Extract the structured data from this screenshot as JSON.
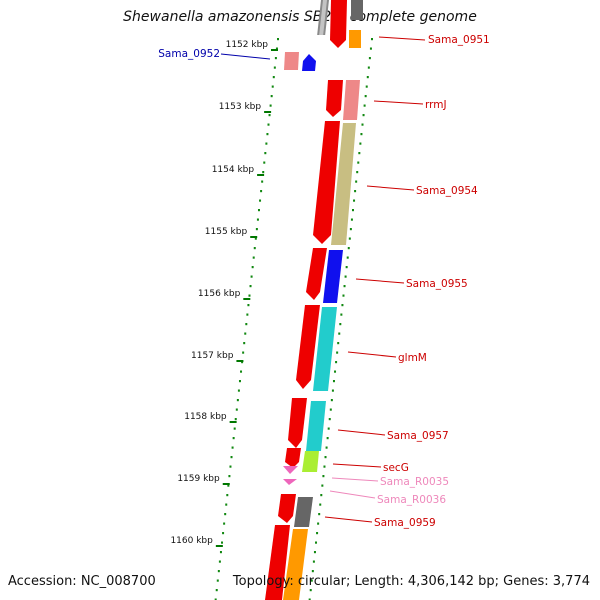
{
  "title": "Shewanella amazonensis SB2B, complete genome",
  "accession": "Accession: NC_008700",
  "topology": "Topology: circular; Length: 4,306,142 bp; Genes: 3,774",
  "ruler": [
    {
      "label": "1152 kbp"
    },
    {
      "label": "1153 kbp"
    },
    {
      "label": "1154 kbp"
    },
    {
      "label": "1155 kbp"
    },
    {
      "label": "1156 kbp"
    },
    {
      "label": "1157 kbp"
    },
    {
      "label": "1158 kbp"
    },
    {
      "label": "1159 kbp"
    },
    {
      "label": "1160 kbp"
    }
  ],
  "colors": {
    "red": "#ee0000",
    "pink": "#ee8888",
    "blue": "#1010ee",
    "khaki": "#c8be82",
    "cyan": "#22cccc",
    "lime": "#aaee33",
    "orange": "#ff9900",
    "gray": "#666666",
    "rna": "#ee66bb",
    "label_red": "#cc0000",
    "label_blue": "#0000aa",
    "label_pink": "#ee88bb",
    "tick_green": "#007700"
  },
  "genes": [
    {
      "label": "Sama_0951",
      "color": "label_red"
    },
    {
      "label": "Sama_0952",
      "color": "label_blue"
    },
    {
      "label": "rrmJ",
      "color": "label_red"
    },
    {
      "label": "Sama_0954",
      "color": "label_red"
    },
    {
      "label": "Sama_0955",
      "color": "label_red"
    },
    {
      "label": "glmM",
      "color": "label_red"
    },
    {
      "label": "Sama_0957",
      "color": "label_red"
    },
    {
      "label": "secG",
      "color": "label_red"
    },
    {
      "label": "Sama_R0035",
      "color": "label_pink"
    },
    {
      "label": "Sama_R0036",
      "color": "label_pink"
    },
    {
      "label": "Sama_0959",
      "color": "label_red"
    }
  ]
}
